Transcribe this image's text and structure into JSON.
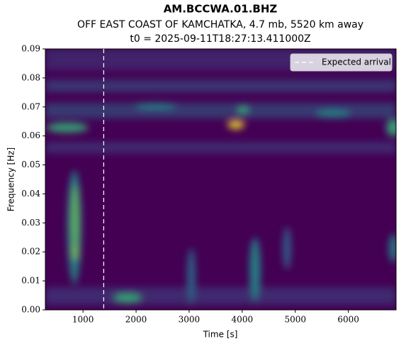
{
  "chart_data": {
    "type": "spectrogram",
    "title": "AM.BCCWA.01.BHZ",
    "subtitle": "OFF EAST COAST OF KAMCHATKA, 4.7 mb, 5520 km away",
    "subtitle2": "t0 = 2025-09-11T18:27:13.411000Z",
    "xlabel": "Time [s]",
    "ylabel": "Frequency [Hz]",
    "xlim": [
      290,
      6900
    ],
    "ylim": [
      0,
      0.09
    ],
    "xticks": [
      1000,
      2000,
      3000,
      4000,
      5000,
      6000
    ],
    "yticks": [
      {
        "value": 0,
        "label": "0.00"
      },
      {
        "value": 0.01,
        "label": "0.01"
      },
      {
        "value": 0.02,
        "label": "0.02"
      },
      {
        "value": 0.03,
        "label": "0.03"
      },
      {
        "value": 0.04,
        "label": "0.04"
      },
      {
        "value": 0.05,
        "label": "0.05"
      },
      {
        "value": 0.06,
        "label": "0.06"
      },
      {
        "value": 0.07,
        "label": "0.07"
      },
      {
        "value": 0.08,
        "label": "0.08"
      },
      {
        "value": 0.09,
        "label": "0.09"
      }
    ],
    "vlines": [
      {
        "name": "Expected arrival",
        "x": 1390,
        "color": "#ffffff"
      }
    ],
    "legend": "upper right"
  }
}
